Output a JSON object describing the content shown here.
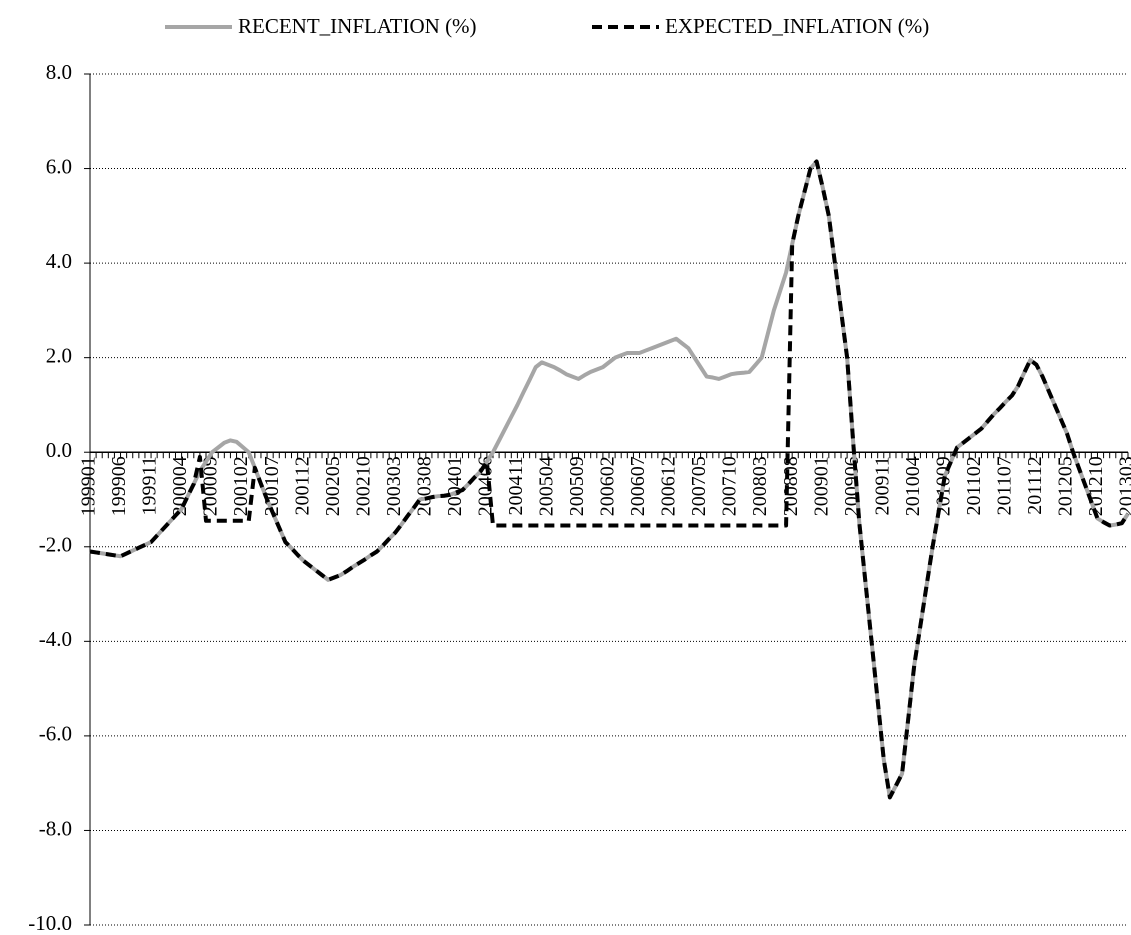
{
  "chart_data": {
    "type": "line",
    "categories": [
      "199901",
      null,
      null,
      null,
      null,
      "199906",
      null,
      null,
      null,
      null,
      "199911",
      null,
      null,
      null,
      null,
      "200004",
      null,
      null,
      null,
      null,
      "200009",
      null,
      null,
      null,
      null,
      "200102",
      null,
      null,
      null,
      null,
      "200107",
      null,
      null,
      null,
      null,
      "200112",
      null,
      null,
      null,
      null,
      "200205",
      null,
      null,
      null,
      null,
      "200210",
      null,
      null,
      null,
      null,
      "200303",
      null,
      null,
      null,
      null,
      "200308",
      null,
      null,
      null,
      null,
      "200401",
      null,
      null,
      null,
      null,
      "200406",
      null,
      null,
      null,
      null,
      "200411",
      null,
      null,
      null,
      null,
      "200504",
      null,
      null,
      null,
      null,
      "200509",
      null,
      null,
      null,
      null,
      "200602",
      null,
      null,
      null,
      null,
      "200607",
      null,
      null,
      null,
      null,
      "200612",
      null,
      null,
      null,
      null,
      "200705",
      null,
      null,
      null,
      null,
      "200710",
      null,
      null,
      null,
      null,
      "200803",
      null,
      null,
      null,
      null,
      "200808",
      null,
      null,
      null,
      null,
      "200901",
      null,
      null,
      null,
      null,
      "200906",
      null,
      null,
      null,
      null,
      "200911",
      null,
      null,
      null,
      null,
      "201004",
      null,
      null,
      null,
      null,
      "201009",
      null,
      null,
      null,
      null,
      "201102",
      null,
      null,
      null,
      null,
      "201107",
      null,
      null,
      null,
      null,
      "201112",
      null,
      null,
      null,
      null,
      "201205",
      null,
      null,
      null,
      null,
      "201210",
      null,
      null,
      null,
      null,
      "201303"
    ],
    "series": [
      {
        "name": "RECENT_INFLATION (%)",
        "color": "#a6a6a6",
        "dash": false,
        "values": [
          -2.1,
          -2.12,
          -2.14,
          -2.16,
          -2.18,
          -2.2,
          -2.14,
          -2.08,
          -2.02,
          -1.96,
          -1.9,
          -1.76,
          -1.62,
          -1.48,
          -1.34,
          -1.2,
          -0.93,
          -0.67,
          -0.4,
          -0.2,
          0.0,
          0.1,
          0.2,
          0.25,
          0.22,
          0.11,
          0.0,
          -0.33,
          -0.67,
          -1.0,
          -1.3,
          -1.6,
          -1.9,
          -2.03,
          -2.17,
          -2.3,
          -2.4,
          -2.5,
          -2.6,
          -2.7,
          -2.65,
          -2.6,
          -2.52,
          -2.43,
          -2.35,
          -2.27,
          -2.18,
          -2.1,
          -1.97,
          -1.83,
          -1.7,
          -1.53,
          -1.35,
          -1.18,
          -1.0,
          -0.98,
          -0.95,
          -0.93,
          -0.92,
          -0.9,
          -0.85,
          -0.8,
          -0.67,
          -0.53,
          -0.4,
          -0.2,
          0.0,
          0.25,
          0.5,
          0.75,
          1.0,
          1.27,
          1.53,
          1.8,
          1.9,
          1.85,
          1.8,
          1.73,
          1.65,
          1.6,
          1.55,
          1.63,
          1.7,
          1.75,
          1.8,
          1.9,
          2.0,
          2.05,
          2.1,
          2.1,
          2.1,
          2.15,
          2.2,
          2.25,
          2.3,
          2.35,
          2.4,
          2.3,
          2.2,
          2.0,
          1.8,
          1.6,
          1.58,
          1.55,
          1.6,
          1.65,
          1.67,
          1.68,
          1.7,
          1.85,
          2.0,
          2.5,
          3.0,
          3.4,
          3.8,
          4.4,
          5.0,
          5.5,
          6.0,
          6.15,
          5.6,
          5.0,
          4.0,
          3.0,
          2.0,
          0.2,
          -1.5,
          -2.75,
          -4.0,
          -5.25,
          -6.5,
          -7.3,
          -7.05,
          -6.8,
          -5.65,
          -4.5,
          -3.67,
          -2.83,
          -2.0,
          -1.25,
          -0.5,
          -0.2,
          0.1,
          0.2,
          0.3,
          0.4,
          0.5,
          0.65,
          0.8,
          0.93,
          1.07,
          1.2,
          1.4,
          1.68,
          1.95,
          1.85,
          1.6,
          1.3,
          1.0,
          0.7,
          0.4,
          0.0,
          -0.35,
          -0.7,
          -1.05,
          -1.4,
          -1.48,
          -1.55,
          -1.53,
          -1.5,
          -1.3
        ]
      },
      {
        "name": "EXPECTED_INFLATION (%)",
        "color": "#000000",
        "dash": true,
        "values": [
          -2.1,
          -2.12,
          -2.14,
          -2.16,
          -2.18,
          -2.2,
          -2.14,
          -2.08,
          -2.02,
          -1.96,
          -1.9,
          -1.76,
          -1.62,
          -1.48,
          -1.34,
          -1.2,
          -0.93,
          -0.67,
          -0.1,
          -1.45,
          -1.45,
          -1.45,
          -1.45,
          -1.45,
          -1.45,
          -1.45,
          -1.45,
          -0.33,
          -0.67,
          -1.0,
          -1.3,
          -1.6,
          -1.9,
          -2.03,
          -2.17,
          -2.3,
          -2.4,
          -2.5,
          -2.6,
          -2.7,
          -2.65,
          -2.6,
          -2.52,
          -2.43,
          -2.35,
          -2.27,
          -2.18,
          -2.1,
          -1.97,
          -1.83,
          -1.7,
          -1.53,
          -1.35,
          -1.18,
          -1.0,
          -0.98,
          -0.95,
          -0.93,
          -0.92,
          -0.9,
          -0.85,
          -0.8,
          -0.67,
          -0.53,
          -0.4,
          -0.2,
          -1.55,
          -1.55,
          -1.55,
          -1.55,
          -1.55,
          -1.55,
          -1.55,
          -1.55,
          -1.55,
          -1.55,
          -1.55,
          -1.55,
          -1.55,
          -1.55,
          -1.55,
          -1.55,
          -1.55,
          -1.55,
          -1.55,
          -1.55,
          -1.55,
          -1.55,
          -1.55,
          -1.55,
          -1.55,
          -1.55,
          -1.55,
          -1.55,
          -1.55,
          -1.55,
          -1.55,
          -1.55,
          -1.55,
          -1.55,
          -1.55,
          -1.55,
          -1.55,
          -1.55,
          -1.55,
          -1.55,
          -1.55,
          -1.55,
          -1.55,
          -1.55,
          -1.55,
          -1.55,
          -1.55,
          -1.55,
          -1.55,
          4.4,
          5.0,
          5.5,
          6.0,
          6.15,
          5.6,
          5.0,
          4.0,
          3.0,
          2.0,
          0.2,
          -1.5,
          -2.75,
          -4.0,
          -5.25,
          -6.5,
          -7.3,
          -7.05,
          -6.8,
          -5.65,
          -4.5,
          -3.67,
          -2.83,
          -2.0,
          -1.25,
          -0.5,
          -0.2,
          0.1,
          0.2,
          0.3,
          0.4,
          0.5,
          0.65,
          0.8,
          0.93,
          1.07,
          1.2,
          1.4,
          1.68,
          1.95,
          1.85,
          1.6,
          1.3,
          1.0,
          0.7,
          0.4,
          0.0,
          -0.35,
          -0.7,
          -1.05,
          -1.4,
          -1.48,
          -1.55,
          -1.53,
          -1.5,
          -1.3
        ]
      }
    ],
    "ylim": [
      -10,
      8
    ],
    "yticks": [
      {
        "value": -10,
        "label": "-10.0"
      },
      {
        "value": -8,
        "label": "-8.0"
      },
      {
        "value": -6,
        "label": "-6.0"
      },
      {
        "value": -4,
        "label": "-4.0"
      },
      {
        "value": -2,
        "label": "-2.0"
      },
      {
        "value": 0,
        "label": "0.0"
      },
      {
        "value": 2,
        "label": "2.0"
      },
      {
        "value": 4,
        "label": "4.0"
      },
      {
        "value": 6,
        "label": "6.0"
      },
      {
        "value": 8,
        "label": "8.0"
      }
    ],
    "grid": true,
    "legend": "top"
  }
}
